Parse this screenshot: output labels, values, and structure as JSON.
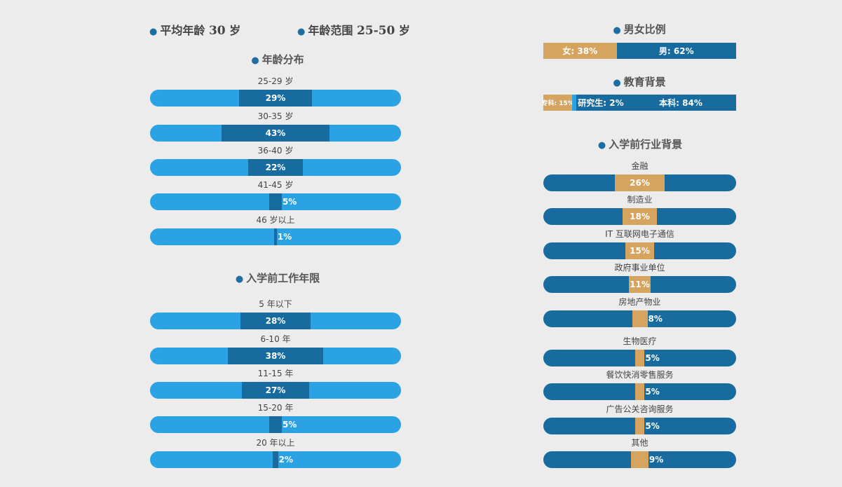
{
  "colors": {
    "light_blue": "#2aa2e3",
    "dark_blue": "#176b9e",
    "gold": "#d5a45f",
    "background": "#ececec"
  },
  "stats": {
    "avg_age_label": "平均年龄",
    "avg_age_value": "30",
    "avg_age_unit": "岁",
    "age_range_label": "年龄范围",
    "age_range_value": "25-50",
    "age_range_unit": "岁"
  },
  "chart_data": [
    {
      "type": "bar",
      "title": "年龄分布",
      "categories": [
        "25-29 岁",
        "30-35 岁",
        "36-40 岁",
        "41-45 岁",
        "46 岁以上"
      ],
      "values": [
        29,
        43,
        22,
        5,
        1
      ],
      "value_labels": [
        "29%",
        "43%",
        "22%",
        "5%",
        "1%"
      ],
      "ylim": [
        0,
        100
      ]
    },
    {
      "type": "bar",
      "title": "入学前工作年限",
      "categories": [
        "5 年以下",
        "6-10 年",
        "11-15 年",
        "15-20 年",
        "20 年以上"
      ],
      "values": [
        28,
        38,
        27,
        5,
        2
      ],
      "value_labels": [
        "28%",
        "38%",
        "27%",
        "5%",
        "2%"
      ],
      "ylim": [
        0,
        100
      ]
    },
    {
      "type": "bar",
      "title": "男女比例",
      "categories": [
        "女",
        "男"
      ],
      "values": [
        38,
        62
      ],
      "value_labels": [
        "女: 38%",
        "男: 62%"
      ]
    },
    {
      "type": "bar",
      "title": "教育背景",
      "categories": [
        "专科",
        "研究生",
        "本科"
      ],
      "values": [
        15,
        2,
        84
      ],
      "value_labels": [
        "专科: 15%",
        "研究生: 2%",
        "本科: 84%"
      ]
    },
    {
      "type": "bar",
      "title": "入学前行业背景",
      "categories": [
        "金融",
        "制造业",
        "IT 互联网电子通信",
        "政府事业单位",
        "房地产物业",
        "生物医疗",
        "餐饮快消零售服务",
        "广告公关咨询服务",
        "其他"
      ],
      "values": [
        26,
        18,
        15,
        11,
        8,
        5,
        5,
        5,
        9
      ],
      "value_labels": [
        "26%",
        "18%",
        "15%",
        "11%",
        "8%",
        "5%",
        "5%",
        "5%",
        "9%"
      ],
      "ylim": [
        0,
        100
      ]
    }
  ]
}
